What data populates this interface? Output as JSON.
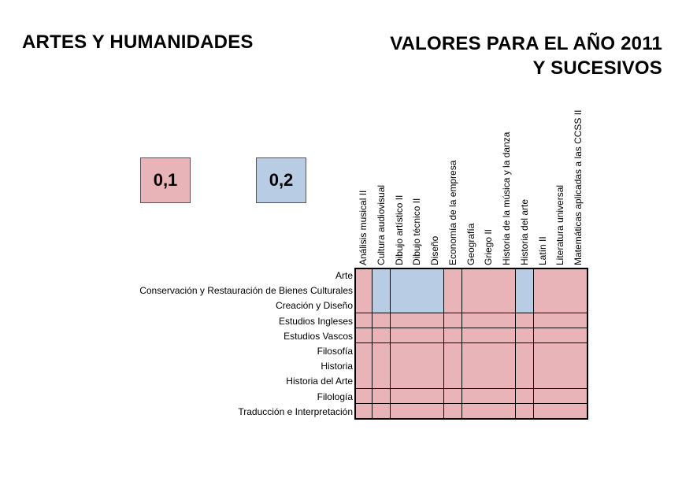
{
  "title_left": "ARTES Y HUMANIDADES",
  "title_right_line1": "VALORES PARA EL AÑO 2011",
  "title_right_line2": "Y SUCESIVOS",
  "legend": [
    {
      "label": "0,1",
      "color": "#e8b4b8"
    },
    {
      "label": "0,2",
      "color": "#b8cce4"
    }
  ],
  "columns": [
    "Análisis musical II",
    "Cultura audiovisual",
    "Dibujo artístico II",
    "Dibujo técnico II",
    "Diseño",
    "Economía de la empresa",
    "Geografía",
    "Griego II",
    "Historia de la música y la danza",
    "Historia del arte",
    "Latín II",
    "Literatura universal",
    "Matemáticas aplicadas a las CCSS II"
  ],
  "rows": [
    {
      "label": "Arte",
      "values": [
        "0,1",
        "0,2",
        "0,2",
        "0,2",
        "0,2",
        "0,1",
        "0,1",
        "0,1",
        "0,1",
        "0,2",
        "0,1",
        "0,1",
        "0,1"
      ]
    },
    {
      "label": "Conservación y Restauración de Bienes Culturales",
      "values": [
        "0,1",
        "0,2",
        "0,2",
        "0,2",
        "0,2",
        "0,1",
        "0,1",
        "0,1",
        "0,1",
        "0,2",
        "0,1",
        "0,1",
        "0,1"
      ]
    },
    {
      "label": "Creación y Diseño",
      "values": [
        "0,1",
        "0,2",
        "0,2",
        "0,2",
        "0,2",
        "0,1",
        "0,1",
        "0,1",
        "0,1",
        "0,2",
        "0,1",
        "0,1",
        "0,1"
      ]
    },
    {
      "label": "Estudios Ingleses",
      "values": [
        "0,1",
        "0,1",
        "0,1",
        "0,1",
        "0,1",
        "0,1",
        "0,1",
        "0,1",
        "0,1",
        "0,1",
        "0,1",
        "0,1",
        "0,1"
      ]
    },
    {
      "label": "Estudios Vascos",
      "values": [
        "0,1",
        "0,1",
        "0,1",
        "0,1",
        "0,1",
        "0,1",
        "0,1",
        "0,1",
        "0,1",
        "0,1",
        "0,1",
        "0,1",
        "0,1"
      ]
    },
    {
      "label": "Filosofía",
      "values": [
        "0,1",
        "0,1",
        "0,1",
        "0,1",
        "0,1",
        "0,1",
        "0,1",
        "0,1",
        "0,1",
        "0,1",
        "0,1",
        "0,1",
        "0,1"
      ]
    },
    {
      "label": "Historia",
      "values": [
        "0,1",
        "0,1",
        "0,1",
        "0,1",
        "0,1",
        "0,1",
        "0,1",
        "0,1",
        "0,1",
        "0,1",
        "0,1",
        "0,1",
        "0,1"
      ]
    },
    {
      "label": "Historia del Arte",
      "values": [
        "0,1",
        "0,1",
        "0,1",
        "0,1",
        "0,1",
        "0,1",
        "0,1",
        "0,1",
        "0,1",
        "0,1",
        "0,1",
        "0,1",
        "0,1"
      ]
    },
    {
      "label": "Filología",
      "values": [
        "0,1",
        "0,1",
        "0,1",
        "0,1",
        "0,1",
        "0,1",
        "0,1",
        "0,1",
        "0,1",
        "0,1",
        "0,1",
        "0,1",
        "0,1"
      ]
    },
    {
      "label": "Traducción e Interpretación",
      "values": [
        "0,1",
        "0,1",
        "0,1",
        "0,1",
        "0,1",
        "0,1",
        "0,1",
        "0,1",
        "0,1",
        "0,1",
        "0,1",
        "0,1",
        "0,1"
      ]
    }
  ]
}
